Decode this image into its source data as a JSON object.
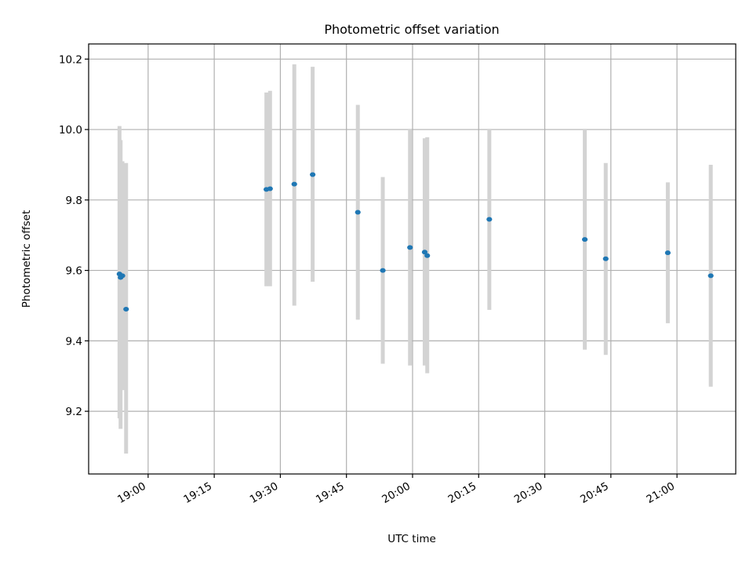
{
  "chart_data": {
    "type": "scatter",
    "title": "Photometric offset variation",
    "xlabel": "UTC time",
    "ylabel": "Photometric offset",
    "grid": true,
    "xlim": [
      "18:46:30",
      "21:13:20"
    ],
    "ylim": [
      9.022,
      10.243
    ],
    "x_ticks": [
      "19:00",
      "19:15",
      "19:30",
      "19:45",
      "20:00",
      "20:15",
      "20:30",
      "20:45",
      "21:00"
    ],
    "y_ticks": [
      9.2,
      9.4,
      9.6,
      9.8,
      10.0,
      10.2
    ],
    "y_tick_labels": [
      "9.2",
      "9.4",
      "9.6",
      "9.8",
      "10.0",
      "10.2"
    ],
    "marker_color": "#1f77b4",
    "errorbar_color": "#d3d3d3",
    "series": [
      {
        "points": [
          {
            "x": "18:53:30",
            "y": 9.59,
            "ymin": 9.18,
            "ymax": 10.01
          },
          {
            "x": "18:53:45",
            "y": 9.58,
            "ymin": 9.15,
            "ymax": 9.97
          },
          {
            "x": "18:54:10",
            "y": 9.585,
            "ymin": 9.26,
            "ymax": 9.91
          },
          {
            "x": "18:55:00",
            "y": 9.49,
            "ymin": 9.08,
            "ymax": 9.905
          },
          {
            "x": "19:26:50",
            "y": 9.83,
            "ymin": 9.555,
            "ymax": 10.105
          },
          {
            "x": "19:27:40",
            "y": 9.832,
            "ymin": 9.555,
            "ymax": 10.11
          },
          {
            "x": "19:33:10",
            "y": 9.845,
            "ymin": 9.5,
            "ymax": 10.185
          },
          {
            "x": "19:37:20",
            "y": 9.872,
            "ymin": 9.568,
            "ymax": 10.178
          },
          {
            "x": "19:47:35",
            "y": 9.765,
            "ymin": 9.46,
            "ymax": 10.07
          },
          {
            "x": "19:53:15",
            "y": 9.6,
            "ymin": 9.335,
            "ymax": 9.865
          },
          {
            "x": "19:59:25",
            "y": 9.665,
            "ymin": 9.33,
            "ymax": 10.0
          },
          {
            "x": "20:02:45",
            "y": 9.652,
            "ymin": 9.33,
            "ymax": 9.975
          },
          {
            "x": "20:03:20",
            "y": 9.642,
            "ymin": 9.308,
            "ymax": 9.978
          },
          {
            "x": "20:17:25",
            "y": 9.745,
            "ymin": 9.488,
            "ymax": 10.0
          },
          {
            "x": "20:39:05",
            "y": 9.688,
            "ymin": 9.375,
            "ymax": 10.0
          },
          {
            "x": "20:43:50",
            "y": 9.633,
            "ymin": 9.36,
            "ymax": 9.905
          },
          {
            "x": "20:57:55",
            "y": 9.65,
            "ymin": 9.45,
            "ymax": 9.85
          },
          {
            "x": "21:07:40",
            "y": 9.585,
            "ymin": 9.27,
            "ymax": 9.9
          }
        ]
      }
    ]
  }
}
